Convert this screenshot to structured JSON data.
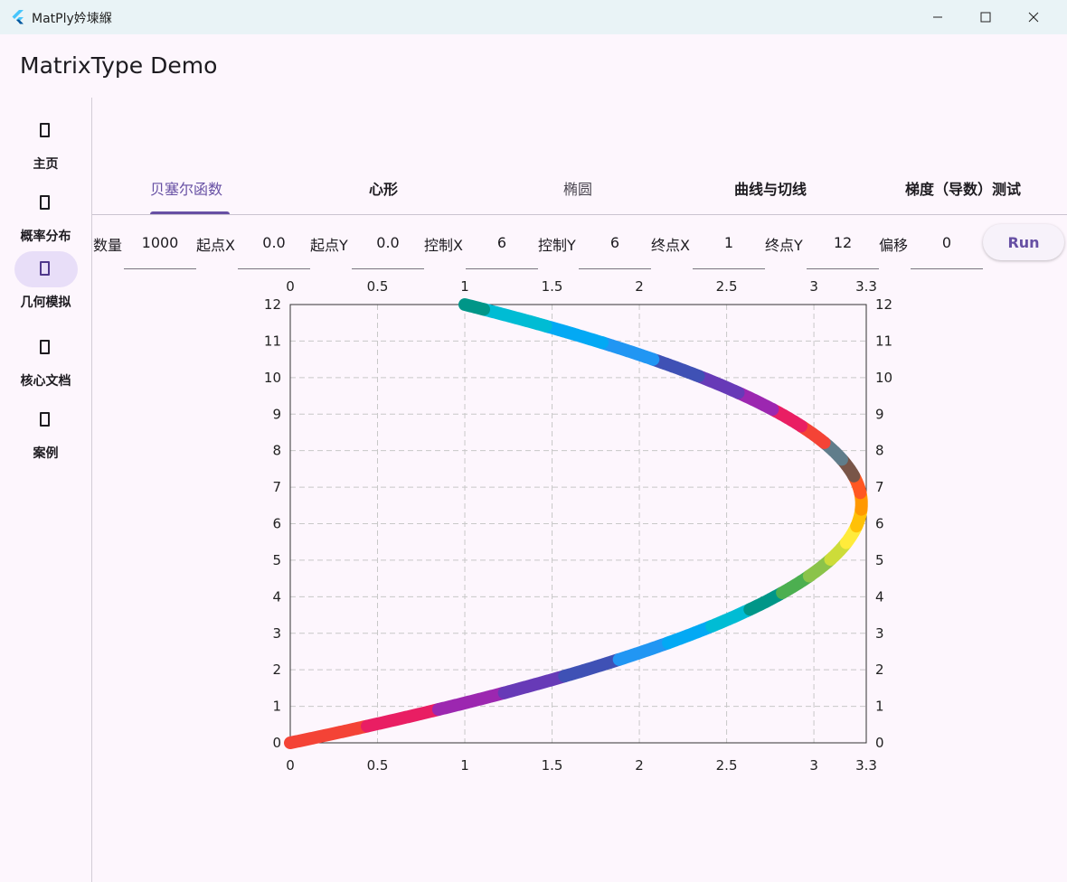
{
  "window": {
    "title": "MatPly妗堜緥"
  },
  "app": {
    "title": "MatrixType Demo"
  },
  "rail": {
    "items": [
      {
        "label": "主页",
        "icon": "home-icon",
        "active": false
      },
      {
        "label": "概率分布",
        "icon": "distribution-icon",
        "active": false
      },
      {
        "label": "几何模拟",
        "icon": "geometry-icon",
        "active": true
      },
      {
        "label": "核心文档",
        "icon": "document-icon",
        "active": false
      },
      {
        "label": "案例",
        "icon": "case-icon",
        "active": false
      }
    ]
  },
  "tabs": [
    {
      "label": "贝塞尔函数",
      "active": true
    },
    {
      "label": "心形",
      "active": false
    },
    {
      "label": "椭圆",
      "active": false
    },
    {
      "label": "曲线与切线",
      "active": false
    },
    {
      "label": "梯度（导数）测试",
      "active": false
    }
  ],
  "params": [
    {
      "label": "数量",
      "value": "1000"
    },
    {
      "label": "起点X",
      "value": "0.0"
    },
    {
      "label": "起点Y",
      "value": "0.0"
    },
    {
      "label": "控制X",
      "value": "6"
    },
    {
      "label": "控制Y",
      "value": "6"
    },
    {
      "label": "终点X",
      "value": "1"
    },
    {
      "label": "终点Y",
      "value": "12"
    },
    {
      "label": "偏移",
      "value": "0"
    }
  ],
  "run_label": "Run",
  "colors": {
    "accent": "#6750a4",
    "segments": [
      "#f44336",
      "#e91e63",
      "#9c27b0",
      "#673ab7",
      "#3f51b5",
      "#2196f3",
      "#03a9f4",
      "#00bcd4",
      "#009688",
      "#4caf50",
      "#8bc34a",
      "#cddc39",
      "#ffeb3b",
      "#ffc107",
      "#ff9800",
      "#ff5722",
      "#795548",
      "#607d8b"
    ]
  },
  "chart_data": {
    "type": "scatter",
    "description_curve": "quadratic bezier",
    "start": [
      0,
      0
    ],
    "control": [
      6,
      6
    ],
    "end": [
      1,
      12
    ],
    "count": 1000,
    "xlim": [
      0,
      3.3
    ],
    "ylim": [
      0,
      12
    ],
    "x_ticks": [
      "0",
      "0.5",
      "1",
      "1.5",
      "2",
      "2.5",
      "3",
      "3.3"
    ],
    "x_tick_values": [
      0,
      0.5,
      1,
      1.5,
      2,
      2.5,
      3,
      3.3
    ],
    "y_ticks": [
      "0",
      "1",
      "2",
      "3",
      "4",
      "5",
      "6",
      "7",
      "8",
      "9",
      "10",
      "11",
      "12"
    ],
    "grid": true
  }
}
